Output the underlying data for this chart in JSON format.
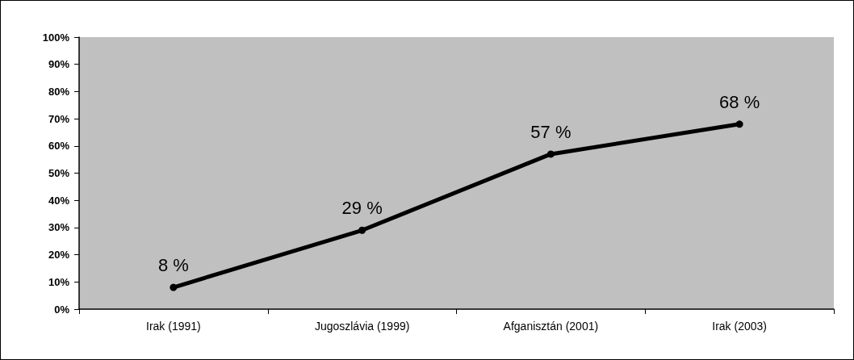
{
  "chart_data": {
    "type": "line",
    "categories": [
      "Irak (1991)",
      "Jugoszlávia (1999)",
      "Afganisztán (2001)",
      "Irak (2003)"
    ],
    "series": [
      {
        "color": "#000000",
        "values": [
          8,
          29,
          57,
          68
        ],
        "value_labels": [
          "8 %",
          "29 %",
          "57 %",
          "68 %"
        ]
      }
    ],
    "ylim": [
      0,
      100
    ],
    "yticks": [
      {
        "value": 0,
        "label": "0%"
      },
      {
        "value": 10,
        "label": "10%"
      },
      {
        "value": 20,
        "label": "20%"
      },
      {
        "value": 30,
        "label": "30%"
      },
      {
        "value": 40,
        "label": "40%"
      },
      {
        "value": 50,
        "label": "50%"
      },
      {
        "value": 60,
        "label": "60%"
      },
      {
        "value": 70,
        "label": "70%"
      },
      {
        "value": 80,
        "label": "80%"
      },
      {
        "value": 90,
        "label": "90%"
      },
      {
        "value": 100,
        "label": "100%"
      }
    ],
    "grid": false,
    "marker": "circle",
    "line_style": "solid"
  }
}
